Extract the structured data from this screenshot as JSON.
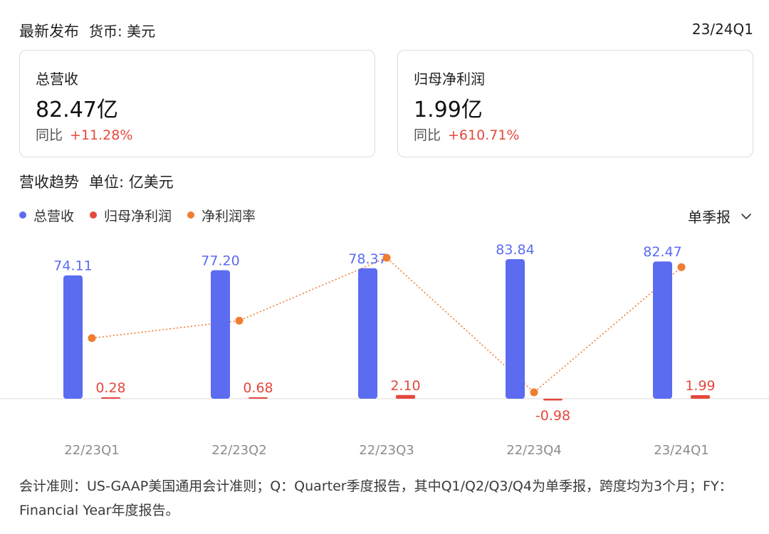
{
  "header": {
    "title": "最新发布",
    "currency": "货币: 美元",
    "period": "23/24Q1"
  },
  "cards": [
    {
      "label": "总营收",
      "value": "82.47亿",
      "yoy_label": "同比",
      "yoy_change": "+11.28%"
    },
    {
      "label": "归母净利润",
      "value": "1.99亿",
      "yoy_label": "同比",
      "yoy_change": "+610.71%"
    }
  ],
  "section": {
    "title": "营收趋势",
    "unit": "单位: 亿美元"
  },
  "legend": [
    {
      "label": "总营收",
      "color": "#5b6cf0"
    },
    {
      "label": "归母净利润",
      "color": "#e5483c"
    },
    {
      "label": "净利润率",
      "color": "#f07c30"
    }
  ],
  "period_select": {
    "value": "单季报",
    "icon": "chevron-down-icon"
  },
  "chart_data": {
    "type": "bar",
    "categories": [
      "22/23Q1",
      "22/23Q2",
      "22/23Q3",
      "22/23Q4",
      "23/24Q1"
    ],
    "series": [
      {
        "name": "总营收",
        "type": "bar",
        "color": "#5b6cf0",
        "values": [
          74.11,
          77.2,
          78.37,
          83.84,
          82.47
        ],
        "labels": [
          "74.11",
          "77.20",
          "78.37",
          "83.84",
          "82.47"
        ]
      },
      {
        "name": "归母净利润",
        "type": "bar",
        "color": "#e5483c",
        "values": [
          0.28,
          0.68,
          2.1,
          -0.98,
          1.99
        ],
        "labels": [
          "0.28",
          "0.68",
          "2.10",
          "-0.98",
          "1.99"
        ]
      },
      {
        "name": "净利润率",
        "type": "line",
        "style": "dotted",
        "color": "#f07c30",
        "values": [
          0.38,
          0.88,
          2.68,
          -1.17,
          2.41
        ]
      }
    ],
    "grid": false,
    "legend_position": "top-left"
  },
  "footnote": "会计准则：US-GAAP美国通用会计准则；Q：Quarter季度报告，其中Q1/Q2/Q3/Q4为单季报，跨度均为3个月；FY：Financial Year年度报告。"
}
